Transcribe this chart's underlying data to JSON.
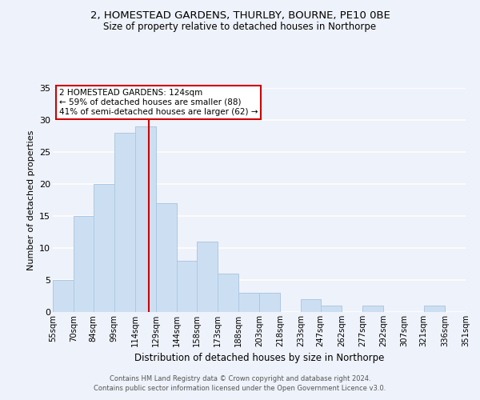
{
  "title": "2, HOMESTEAD GARDENS, THURLBY, BOURNE, PE10 0BE",
  "subtitle": "Size of property relative to detached houses in Northorpe",
  "xlabel": "Distribution of detached houses by size in Northorpe",
  "ylabel": "Number of detached properties",
  "bar_color": "#ccdff2",
  "bar_edge_color": "#aec8e0",
  "reference_line_x": 124,
  "reference_line_color": "#cc0000",
  "bin_edges": [
    55,
    70,
    84,
    99,
    114,
    129,
    144,
    158,
    173,
    188,
    203,
    218,
    233,
    247,
    262,
    277,
    292,
    307,
    321,
    336,
    351
  ],
  "bin_labels": [
    "55sqm",
    "70sqm",
    "84sqm",
    "99sqm",
    "114sqm",
    "129sqm",
    "144sqm",
    "158sqm",
    "173sqm",
    "188sqm",
    "203sqm",
    "218sqm",
    "233sqm",
    "247sqm",
    "262sqm",
    "277sqm",
    "292sqm",
    "307sqm",
    "321sqm",
    "336sqm",
    "351sqm"
  ],
  "counts": [
    5,
    15,
    20,
    28,
    29,
    17,
    8,
    11,
    6,
    3,
    3,
    0,
    2,
    1,
    0,
    1,
    0,
    0,
    1,
    0
  ],
  "ylim": [
    0,
    35
  ],
  "yticks": [
    0,
    5,
    10,
    15,
    20,
    25,
    30,
    35
  ],
  "annotation_text": "2 HOMESTEAD GARDENS: 124sqm\n← 59% of detached houses are smaller (88)\n41% of semi-detached houses are larger (62) →",
  "annotation_box_color": "#ffffff",
  "annotation_box_edge": "#cc0000",
  "footer_line1": "Contains HM Land Registry data © Crown copyright and database right 2024.",
  "footer_line2": "Contains public sector information licensed under the Open Government Licence v3.0.",
  "background_color": "#eef2fa"
}
